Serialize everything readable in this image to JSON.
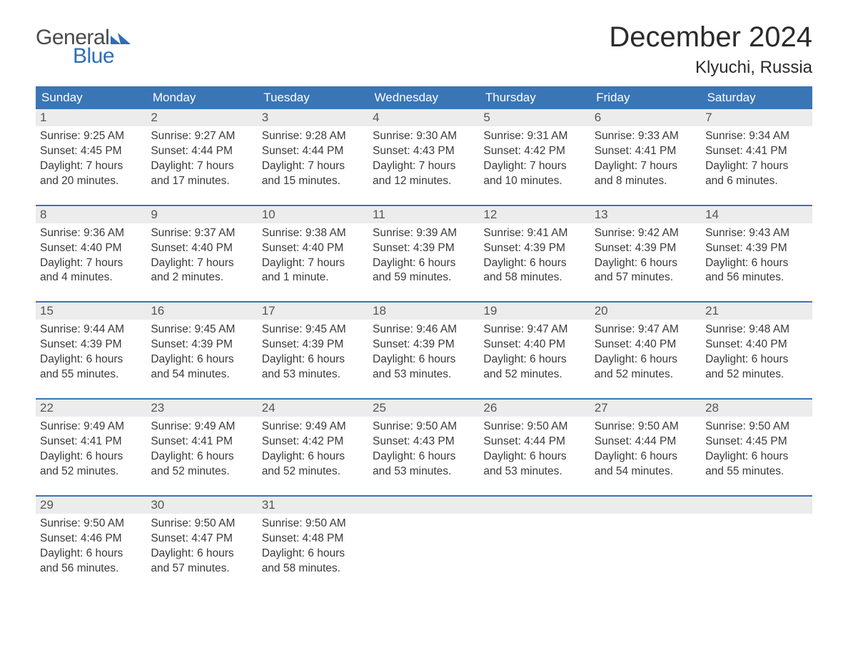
{
  "logo": {
    "text1": "General",
    "text2": "Blue",
    "flag_color": "#2d6fb5"
  },
  "header": {
    "month_title": "December 2024",
    "location": "Klyuchi, Russia"
  },
  "colors": {
    "header_bg": "#3a75b6",
    "header_text": "#ffffff",
    "daynum_bg": "#ececec",
    "body_text": "#3a3a3a",
    "page_bg": "#ffffff"
  },
  "typography": {
    "title_fontsize": 40,
    "location_fontsize": 24,
    "dayheader_fontsize": 17,
    "daybody_fontsize": 15.5
  },
  "day_headers": [
    "Sunday",
    "Monday",
    "Tuesday",
    "Wednesday",
    "Thursday",
    "Friday",
    "Saturday"
  ],
  "weeks": [
    [
      {
        "num": "1",
        "sunrise": "Sunrise: 9:25 AM",
        "sunset": "Sunset: 4:45 PM",
        "d1": "Daylight: 7 hours",
        "d2": "and 20 minutes."
      },
      {
        "num": "2",
        "sunrise": "Sunrise: 9:27 AM",
        "sunset": "Sunset: 4:44 PM",
        "d1": "Daylight: 7 hours",
        "d2": "and 17 minutes."
      },
      {
        "num": "3",
        "sunrise": "Sunrise: 9:28 AM",
        "sunset": "Sunset: 4:44 PM",
        "d1": "Daylight: 7 hours",
        "d2": "and 15 minutes."
      },
      {
        "num": "4",
        "sunrise": "Sunrise: 9:30 AM",
        "sunset": "Sunset: 4:43 PM",
        "d1": "Daylight: 7 hours",
        "d2": "and 12 minutes."
      },
      {
        "num": "5",
        "sunrise": "Sunrise: 9:31 AM",
        "sunset": "Sunset: 4:42 PM",
        "d1": "Daylight: 7 hours",
        "d2": "and 10 minutes."
      },
      {
        "num": "6",
        "sunrise": "Sunrise: 9:33 AM",
        "sunset": "Sunset: 4:41 PM",
        "d1": "Daylight: 7 hours",
        "d2": "and 8 minutes."
      },
      {
        "num": "7",
        "sunrise": "Sunrise: 9:34 AM",
        "sunset": "Sunset: 4:41 PM",
        "d1": "Daylight: 7 hours",
        "d2": "and 6 minutes."
      }
    ],
    [
      {
        "num": "8",
        "sunrise": "Sunrise: 9:36 AM",
        "sunset": "Sunset: 4:40 PM",
        "d1": "Daylight: 7 hours",
        "d2": "and 4 minutes."
      },
      {
        "num": "9",
        "sunrise": "Sunrise: 9:37 AM",
        "sunset": "Sunset: 4:40 PM",
        "d1": "Daylight: 7 hours",
        "d2": "and 2 minutes."
      },
      {
        "num": "10",
        "sunrise": "Sunrise: 9:38 AM",
        "sunset": "Sunset: 4:40 PM",
        "d1": "Daylight: 7 hours",
        "d2": "and 1 minute."
      },
      {
        "num": "11",
        "sunrise": "Sunrise: 9:39 AM",
        "sunset": "Sunset: 4:39 PM",
        "d1": "Daylight: 6 hours",
        "d2": "and 59 minutes."
      },
      {
        "num": "12",
        "sunrise": "Sunrise: 9:41 AM",
        "sunset": "Sunset: 4:39 PM",
        "d1": "Daylight: 6 hours",
        "d2": "and 58 minutes."
      },
      {
        "num": "13",
        "sunrise": "Sunrise: 9:42 AM",
        "sunset": "Sunset: 4:39 PM",
        "d1": "Daylight: 6 hours",
        "d2": "and 57 minutes."
      },
      {
        "num": "14",
        "sunrise": "Sunrise: 9:43 AM",
        "sunset": "Sunset: 4:39 PM",
        "d1": "Daylight: 6 hours",
        "d2": "and 56 minutes."
      }
    ],
    [
      {
        "num": "15",
        "sunrise": "Sunrise: 9:44 AM",
        "sunset": "Sunset: 4:39 PM",
        "d1": "Daylight: 6 hours",
        "d2": "and 55 minutes."
      },
      {
        "num": "16",
        "sunrise": "Sunrise: 9:45 AM",
        "sunset": "Sunset: 4:39 PM",
        "d1": "Daylight: 6 hours",
        "d2": "and 54 minutes."
      },
      {
        "num": "17",
        "sunrise": "Sunrise: 9:45 AM",
        "sunset": "Sunset: 4:39 PM",
        "d1": "Daylight: 6 hours",
        "d2": "and 53 minutes."
      },
      {
        "num": "18",
        "sunrise": "Sunrise: 9:46 AM",
        "sunset": "Sunset: 4:39 PM",
        "d1": "Daylight: 6 hours",
        "d2": "and 53 minutes."
      },
      {
        "num": "19",
        "sunrise": "Sunrise: 9:47 AM",
        "sunset": "Sunset: 4:40 PM",
        "d1": "Daylight: 6 hours",
        "d2": "and 52 minutes."
      },
      {
        "num": "20",
        "sunrise": "Sunrise: 9:47 AM",
        "sunset": "Sunset: 4:40 PM",
        "d1": "Daylight: 6 hours",
        "d2": "and 52 minutes."
      },
      {
        "num": "21",
        "sunrise": "Sunrise: 9:48 AM",
        "sunset": "Sunset: 4:40 PM",
        "d1": "Daylight: 6 hours",
        "d2": "and 52 minutes."
      }
    ],
    [
      {
        "num": "22",
        "sunrise": "Sunrise: 9:49 AM",
        "sunset": "Sunset: 4:41 PM",
        "d1": "Daylight: 6 hours",
        "d2": "and 52 minutes."
      },
      {
        "num": "23",
        "sunrise": "Sunrise: 9:49 AM",
        "sunset": "Sunset: 4:41 PM",
        "d1": "Daylight: 6 hours",
        "d2": "and 52 minutes."
      },
      {
        "num": "24",
        "sunrise": "Sunrise: 9:49 AM",
        "sunset": "Sunset: 4:42 PM",
        "d1": "Daylight: 6 hours",
        "d2": "and 52 minutes."
      },
      {
        "num": "25",
        "sunrise": "Sunrise: 9:50 AM",
        "sunset": "Sunset: 4:43 PM",
        "d1": "Daylight: 6 hours",
        "d2": "and 53 minutes."
      },
      {
        "num": "26",
        "sunrise": "Sunrise: 9:50 AM",
        "sunset": "Sunset: 4:44 PM",
        "d1": "Daylight: 6 hours",
        "d2": "and 53 minutes."
      },
      {
        "num": "27",
        "sunrise": "Sunrise: 9:50 AM",
        "sunset": "Sunset: 4:44 PM",
        "d1": "Daylight: 6 hours",
        "d2": "and 54 minutes."
      },
      {
        "num": "28",
        "sunrise": "Sunrise: 9:50 AM",
        "sunset": "Sunset: 4:45 PM",
        "d1": "Daylight: 6 hours",
        "d2": "and 55 minutes."
      }
    ],
    [
      {
        "num": "29",
        "sunrise": "Sunrise: 9:50 AM",
        "sunset": "Sunset: 4:46 PM",
        "d1": "Daylight: 6 hours",
        "d2": "and 56 minutes."
      },
      {
        "num": "30",
        "sunrise": "Sunrise: 9:50 AM",
        "sunset": "Sunset: 4:47 PM",
        "d1": "Daylight: 6 hours",
        "d2": "and 57 minutes."
      },
      {
        "num": "31",
        "sunrise": "Sunrise: 9:50 AM",
        "sunset": "Sunset: 4:48 PM",
        "d1": "Daylight: 6 hours",
        "d2": "and 58 minutes."
      },
      null,
      null,
      null,
      null
    ]
  ]
}
